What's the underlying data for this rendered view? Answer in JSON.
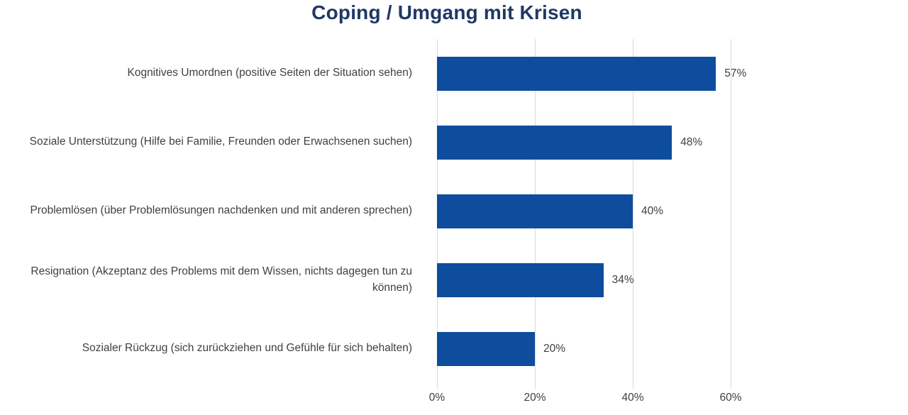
{
  "title": "Coping / Umgang mit Krisen",
  "chart_data": {
    "type": "bar",
    "orientation": "horizontal",
    "title": "Coping / Umgang mit Krisen",
    "categories": [
      "Kognitives Umordnen (positive Seiten der Situation sehen)",
      "Soziale Unterstützung (Hilfe bei Familie, Freunden oder Erwachsenen suchen)",
      "Problemlösen (über Problemlösungen nachdenken und mit anderen sprechen)",
      "Resignation (Akzeptanz des Problems mit dem Wissen, nichts dagegen tun zu können)",
      "Sozialer Rückzug (sich zurückziehen und Gefühle für sich behalten)"
    ],
    "values": [
      57,
      48,
      40,
      34,
      20
    ],
    "value_labels": [
      "57%",
      "48%",
      "40%",
      "34%",
      "20%"
    ],
    "x_tick_values": [
      0,
      20,
      40,
      60
    ],
    "x_tick_labels": [
      "0%",
      "20%",
      "40%",
      "60%"
    ],
    "xlim": [
      0,
      67
    ],
    "grid": "vertical-only",
    "legend": "none",
    "colors": {
      "bar": "#0E4D9D",
      "title": "#1F3864",
      "label": "#404040",
      "gridline": "#D9D9D9",
      "background": "#FFFFFF"
    }
  }
}
